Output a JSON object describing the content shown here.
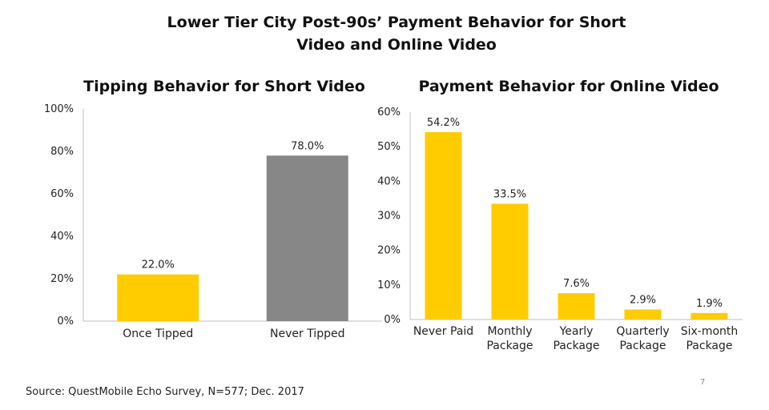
{
  "title": "Lower Tier City Post-90s’ Payment Behavior for Short Video and Online Video",
  "source": "Source: QuestMobile Echo Survey, N=577; Dec. 2017",
  "page_number": "7",
  "colors": {
    "yellow": "#FFCC00",
    "gray": "#878787",
    "axis": "#bfbfbf"
  },
  "chart_data": [
    {
      "type": "bar",
      "title": "Tipping Behavior for Short Video",
      "categories": [
        "Once Tipped",
        "Never Tipped"
      ],
      "values": [
        22.0,
        78.0
      ],
      "bar_colors": [
        "#FFCC00",
        "#878787"
      ],
      "data_labels": [
        "22.0%",
        "78.0%"
      ],
      "ylim": [
        0,
        100
      ],
      "yticks": [
        "0%",
        "20%",
        "40%",
        "60%",
        "80%",
        "100%"
      ],
      "grid": false
    },
    {
      "type": "bar",
      "title": "Payment Behavior for Online Video",
      "categories": [
        [
          "Never Paid"
        ],
        [
          "Monthly",
          "Package"
        ],
        [
          "Yearly",
          "Package"
        ],
        [
          "Quarterly",
          "Package"
        ],
        [
          "Six-month",
          "Package"
        ]
      ],
      "values": [
        54.2,
        33.5,
        7.6,
        2.9,
        1.9
      ],
      "bar_colors": [
        "#FFCC00",
        "#FFCC00",
        "#FFCC00",
        "#FFCC00",
        "#FFCC00"
      ],
      "data_labels": [
        "54.2%",
        "33.5%",
        "7.6%",
        "2.9%",
        "1.9%"
      ],
      "ylim": [
        0,
        60
      ],
      "yticks": [
        "0%",
        "10%",
        "20%",
        "30%",
        "40%",
        "50%",
        "60%"
      ],
      "grid": false
    }
  ]
}
